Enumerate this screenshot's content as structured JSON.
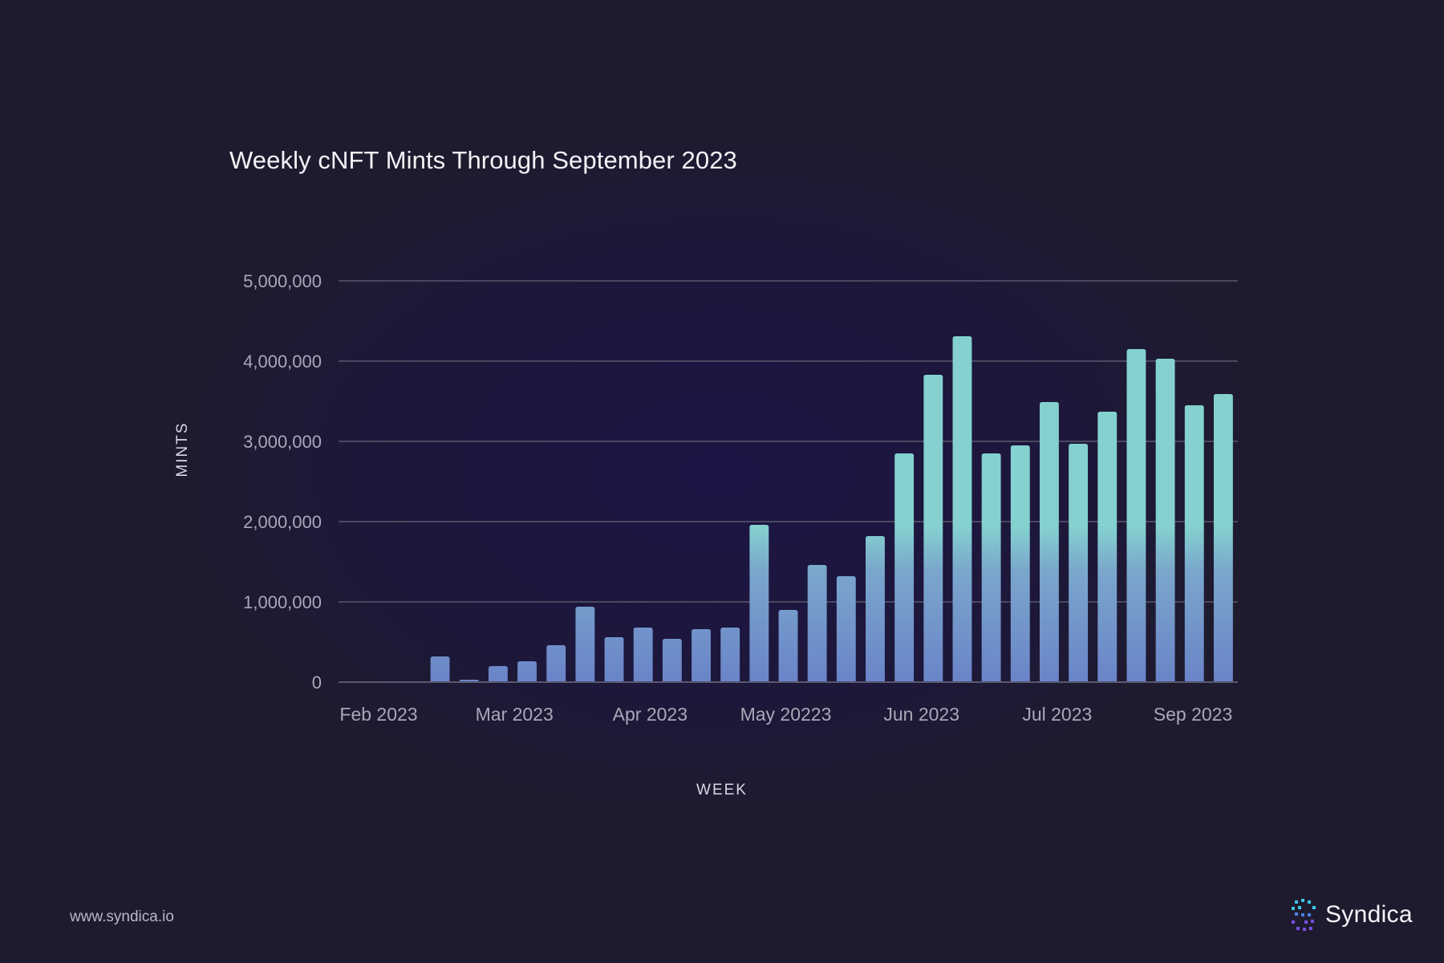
{
  "header": {
    "title": "Weekly cNFT Mints Through September 2023"
  },
  "footer": {
    "url": "www.syndica.io",
    "brand": "Syndica"
  },
  "icons": {
    "brand_logo": "syndica-logo-icon"
  },
  "colors": {
    "bar_top": "#84d1cf",
    "bar_bottom": "#6a84c8",
    "grid": "#4a4860",
    "background": "#1e1b2e"
  },
  "chart_data": {
    "type": "bar",
    "title": "Weekly cNFT Mints Through September 2023",
    "xlabel": "WEEK",
    "ylabel": "MINTS",
    "ylim": [
      0,
      5000000
    ],
    "yticks": [
      0,
      1000000,
      2000000,
      3000000,
      4000000,
      5000000
    ],
    "ytick_labels": [
      "0",
      "1,000,000",
      "2,000,000",
      "3,000,000",
      "4,000,000",
      "5,000,000"
    ],
    "x_tick_labels": [
      "Feb 2023",
      "Mar 2023",
      "Apr 2023",
      "May 20223",
      "Jun 2023",
      "Jul 2023",
      "Sep 2023"
    ],
    "grid": true,
    "values": [
      0,
      0,
      0,
      320000,
      30000,
      200000,
      260000,
      460000,
      940000,
      560000,
      680000,
      540000,
      660000,
      680000,
      1960000,
      900000,
      1460000,
      1320000,
      1820000,
      2850000,
      3830000,
      4310000,
      2850000,
      2950000,
      3490000,
      2970000,
      3370000,
      4150000,
      4030000,
      3450000,
      3590000
    ]
  }
}
